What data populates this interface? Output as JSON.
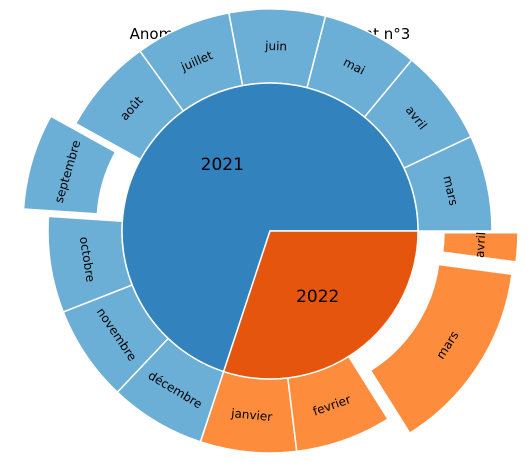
{
  "chart_data": {
    "type": "sunburst",
    "title": "Anomalies dans l'arrondissement n°3",
    "inner": [
      {
        "name": "2021",
        "value": 10,
        "color": "#3182bd"
      },
      {
        "name": "2022",
        "value": 4.3,
        "color": "#e6550d"
      }
    ],
    "outer": [
      {
        "name": "mars",
        "value": 1.0,
        "parent": "2021",
        "exploded": false,
        "color": "#6baed6"
      },
      {
        "name": "avril",
        "value": 1.0,
        "parent": "2021",
        "exploded": false,
        "color": "#6baed6"
      },
      {
        "name": "mai",
        "value": 1.0,
        "parent": "2021",
        "exploded": false,
        "color": "#6baed6"
      },
      {
        "name": "juin",
        "value": 1.0,
        "parent": "2021",
        "exploded": false,
        "color": "#6baed6"
      },
      {
        "name": "juillet",
        "value": 1.0,
        "parent": "2021",
        "exploded": false,
        "color": "#6baed6"
      },
      {
        "name": "août",
        "value": 1.0,
        "parent": "2021",
        "exploded": false,
        "color": "#6baed6"
      },
      {
        "name": "septembre",
        "value": 1.0,
        "parent": "2021",
        "exploded": true,
        "color": "#6baed6"
      },
      {
        "name": "octobre",
        "value": 1.0,
        "parent": "2021",
        "exploded": false,
        "color": "#6baed6"
      },
      {
        "name": "novembre",
        "value": 1.0,
        "parent": "2021",
        "exploded": false,
        "color": "#6baed6"
      },
      {
        "name": "décembre",
        "value": 1.0,
        "parent": "2021",
        "exploded": false,
        "color": "#6baed6"
      },
      {
        "name": "janvier",
        "value": 1.0,
        "parent": "2022",
        "exploded": false,
        "color": "#fd8d3c"
      },
      {
        "name": "fevrier",
        "value": 1.0,
        "parent": "2022",
        "exploded": false,
        "color": "#fd8d3c"
      },
      {
        "name": "mars",
        "value": 2.0,
        "parent": "2022",
        "exploded": true,
        "color": "#fd8d3c"
      },
      {
        "name": "avril",
        "value": 0.3,
        "parent": "2022",
        "exploded": true,
        "color": "#fd8d3c"
      }
    ]
  }
}
